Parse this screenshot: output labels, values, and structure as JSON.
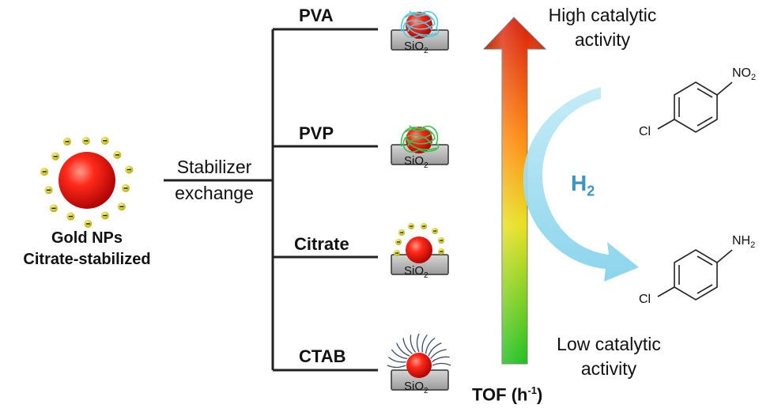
{
  "left": {
    "caption_line1": "Gold NPs",
    "caption_line2": "Citrate-stabilized"
  },
  "exchange": {
    "line1": "Stabilizer",
    "line2": "exchange"
  },
  "stabilizers": [
    {
      "label": "PVA"
    },
    {
      "label": "PVP"
    },
    {
      "label": "Citrate"
    },
    {
      "label": "CTAB"
    }
  ],
  "support": {
    "prefix": "SiO",
    "sub": "2"
  },
  "arrow": {
    "top_line1": "High catalytic",
    "top_line2": "activity",
    "bottom_line1": "Low catalytic",
    "bottom_line2": "activity",
    "axis_prefix": "TOF (h",
    "axis_sup": "-1",
    "axis_suffix": ")"
  },
  "reaction": {
    "reagent_prefix": "H",
    "reagent_sub": "2",
    "reactant_substituent": "Cl",
    "reactant_group_prefix": "NO",
    "reactant_group_sub": "2",
    "product_substituent": "Cl",
    "product_group_prefix": "NH",
    "product_group_sub": "2"
  },
  "colors": {
    "gold_np": "#e01010",
    "citrate": "#d8d020",
    "pva_polymer": "#56c8d8",
    "pvp_polymer": "#3cc050",
    "ctab_chain": "#3a4a70",
    "support": "#b8b8b8",
    "arrow_top": "#e03010",
    "arrow_bottom": "#30c020",
    "h2_arrow": "#8ad6ee"
  }
}
